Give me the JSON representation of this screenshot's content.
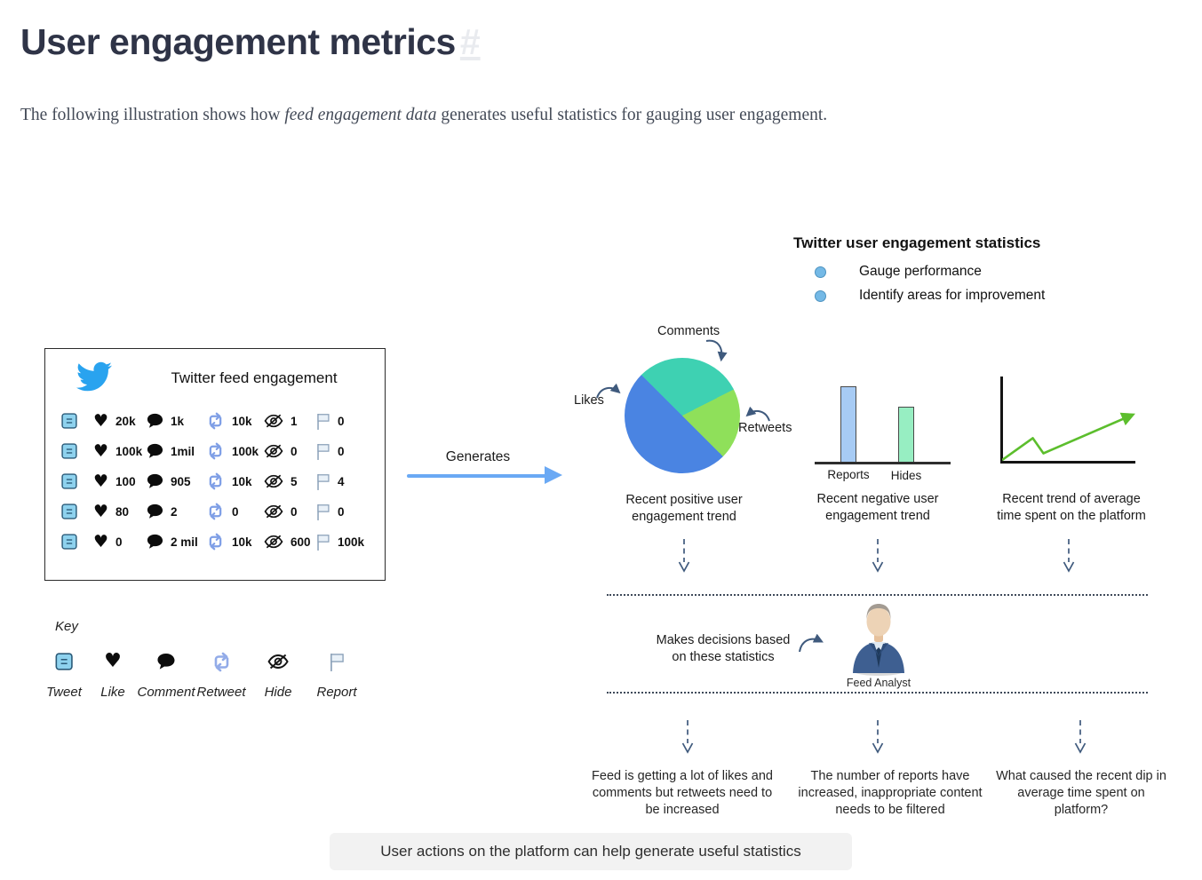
{
  "page": {
    "title": "User engagement metrics",
    "anchor": "#",
    "intro_before": "The following illustration shows how ",
    "intro_emphasis": "feed engagement data",
    "intro_after": " generates useful statistics for gauging user engagement."
  },
  "feed_panel": {
    "title": "Twitter feed engagement",
    "columns": [
      "tweet",
      "like",
      "comment",
      "retweet",
      "hide",
      "report"
    ],
    "rows": [
      {
        "like": "20k",
        "comment": "1k",
        "retweet": "10k",
        "hide": "1",
        "report": "0"
      },
      {
        "like": "100k",
        "comment": "1mil",
        "retweet": "100k",
        "hide": "0",
        "report": "0"
      },
      {
        "like": "100",
        "comment": "905",
        "retweet": "10k",
        "hide": "5",
        "report": "4"
      },
      {
        "like": "80",
        "comment": "2",
        "retweet": "0",
        "hide": "0",
        "report": "0"
      },
      {
        "like": "0",
        "comment": "2 mil",
        "retweet": "10k",
        "hide": "600",
        "report": "100k"
      }
    ]
  },
  "generates": {
    "label": "Generates",
    "arrow_color": "#6aa9f4"
  },
  "stats_header": {
    "title": "Twitter user engagement statistics",
    "bullets": [
      "Gauge performance",
      "Identify areas for improvement"
    ],
    "bullet_color": "#74b9e6"
  },
  "chart_data": [
    {
      "type": "pie",
      "title": "Recent positive user engagement trend",
      "start_angle_deg": 315,
      "slices": [
        {
          "label": "Comments",
          "percent": 30,
          "color": "#3ed1b2"
        },
        {
          "label": "Retweets",
          "percent": 20,
          "color": "#8fe05a"
        },
        {
          "label": "Likes",
          "percent": 50,
          "color": "#4a84e2"
        }
      ]
    },
    {
      "type": "bar",
      "title": "Recent negative user engagement trend",
      "categories": [
        "Reports",
        "Hides"
      ],
      "values": [
        86,
        63
      ],
      "value_unit": "relative bar height, px (no axis scale shown)",
      "colors": [
        "#a7cbf4",
        "#97eec2"
      ]
    },
    {
      "type": "line",
      "title": "Recent trend of average time spent on the platform",
      "color": "#5cbe2d",
      "points_pct": [
        [
          0,
          2
        ],
        [
          23,
          28
        ],
        [
          31,
          10
        ],
        [
          97,
          55
        ]
      ],
      "arrowhead": true
    }
  ],
  "flow": {
    "decision_note": "Makes decisions based on these statistics",
    "analyst_label": "Feed Analyst",
    "outcomes": [
      "Feed is getting a lot of likes and comments but retweets need to be increased",
      "The number of reports have increased, inappropriate content needs to be filtered",
      "What caused the recent dip in average time spent on platform?"
    ]
  },
  "key": {
    "title": "Key",
    "items": [
      {
        "icon": "tweet-icon",
        "label": "Tweet"
      },
      {
        "icon": "like-icon",
        "label": "Like"
      },
      {
        "icon": "comment-icon",
        "label": "Comment"
      },
      {
        "icon": "retweet-icon",
        "label": "Retweet"
      },
      {
        "icon": "hide-icon",
        "label": "Hide"
      },
      {
        "icon": "report-icon",
        "label": "Report"
      }
    ]
  },
  "footer_caption": "User actions on the platform can help generate useful statistics",
  "colors": {
    "title_text": "#2f3447",
    "body_text": "#434a57",
    "twitter_blue": "#29a3ef",
    "tweet_icon_fill": "#8ed2ee",
    "retweet_blue": "#7f9fe6",
    "flow_arrow": "#3f5a7d",
    "caption_bg": "#f2f2f2"
  }
}
